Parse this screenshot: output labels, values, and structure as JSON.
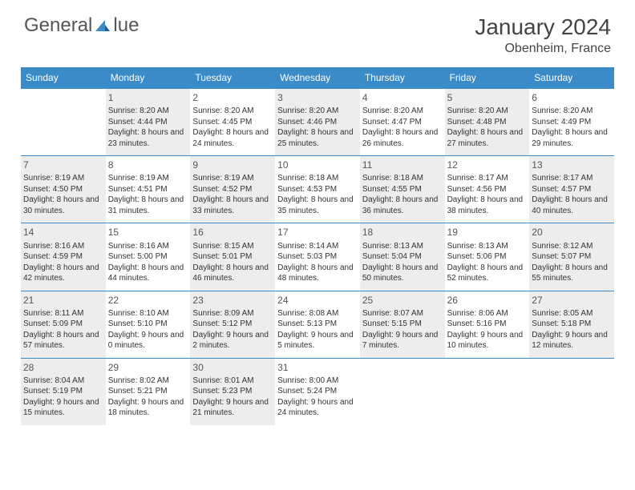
{
  "logo": {
    "text_left": "General",
    "text_right": "lue",
    "accent_color": "#3b8bc9",
    "text_color": "#555555"
  },
  "title": "January 2024",
  "location": "Obenheim, France",
  "colors": {
    "header_bg": "#3b8bc9",
    "header_fg": "#ffffff",
    "gray_bg": "#ededed",
    "text": "#333333"
  },
  "day_headers": [
    "Sunday",
    "Monday",
    "Tuesday",
    "Wednesday",
    "Thursday",
    "Friday",
    "Saturday"
  ],
  "weeks": [
    [
      {
        "num": "",
        "gray": false,
        "sunrise": "",
        "sunset": "",
        "daylight": ""
      },
      {
        "num": "1",
        "gray": true,
        "sunrise": "Sunrise: 8:20 AM",
        "sunset": "Sunset: 4:44 PM",
        "daylight": "Daylight: 8 hours and 23 minutes."
      },
      {
        "num": "2",
        "gray": false,
        "sunrise": "Sunrise: 8:20 AM",
        "sunset": "Sunset: 4:45 PM",
        "daylight": "Daylight: 8 hours and 24 minutes."
      },
      {
        "num": "3",
        "gray": true,
        "sunrise": "Sunrise: 8:20 AM",
        "sunset": "Sunset: 4:46 PM",
        "daylight": "Daylight: 8 hours and 25 minutes."
      },
      {
        "num": "4",
        "gray": false,
        "sunrise": "Sunrise: 8:20 AM",
        "sunset": "Sunset: 4:47 PM",
        "daylight": "Daylight: 8 hours and 26 minutes."
      },
      {
        "num": "5",
        "gray": true,
        "sunrise": "Sunrise: 8:20 AM",
        "sunset": "Sunset: 4:48 PM",
        "daylight": "Daylight: 8 hours and 27 minutes."
      },
      {
        "num": "6",
        "gray": false,
        "sunrise": "Sunrise: 8:20 AM",
        "sunset": "Sunset: 4:49 PM",
        "daylight": "Daylight: 8 hours and 29 minutes."
      }
    ],
    [
      {
        "num": "7",
        "gray": true,
        "sunrise": "Sunrise: 8:19 AM",
        "sunset": "Sunset: 4:50 PM",
        "daylight": "Daylight: 8 hours and 30 minutes."
      },
      {
        "num": "8",
        "gray": false,
        "sunrise": "Sunrise: 8:19 AM",
        "sunset": "Sunset: 4:51 PM",
        "daylight": "Daylight: 8 hours and 31 minutes."
      },
      {
        "num": "9",
        "gray": true,
        "sunrise": "Sunrise: 8:19 AM",
        "sunset": "Sunset: 4:52 PM",
        "daylight": "Daylight: 8 hours and 33 minutes."
      },
      {
        "num": "10",
        "gray": false,
        "sunrise": "Sunrise: 8:18 AM",
        "sunset": "Sunset: 4:53 PM",
        "daylight": "Daylight: 8 hours and 35 minutes."
      },
      {
        "num": "11",
        "gray": true,
        "sunrise": "Sunrise: 8:18 AM",
        "sunset": "Sunset: 4:55 PM",
        "daylight": "Daylight: 8 hours and 36 minutes."
      },
      {
        "num": "12",
        "gray": false,
        "sunrise": "Sunrise: 8:17 AM",
        "sunset": "Sunset: 4:56 PM",
        "daylight": "Daylight: 8 hours and 38 minutes."
      },
      {
        "num": "13",
        "gray": true,
        "sunrise": "Sunrise: 8:17 AM",
        "sunset": "Sunset: 4:57 PM",
        "daylight": "Daylight: 8 hours and 40 minutes."
      }
    ],
    [
      {
        "num": "14",
        "gray": true,
        "sunrise": "Sunrise: 8:16 AM",
        "sunset": "Sunset: 4:59 PM",
        "daylight": "Daylight: 8 hours and 42 minutes."
      },
      {
        "num": "15",
        "gray": false,
        "sunrise": "Sunrise: 8:16 AM",
        "sunset": "Sunset: 5:00 PM",
        "daylight": "Daylight: 8 hours and 44 minutes."
      },
      {
        "num": "16",
        "gray": true,
        "sunrise": "Sunrise: 8:15 AM",
        "sunset": "Sunset: 5:01 PM",
        "daylight": "Daylight: 8 hours and 46 minutes."
      },
      {
        "num": "17",
        "gray": false,
        "sunrise": "Sunrise: 8:14 AM",
        "sunset": "Sunset: 5:03 PM",
        "daylight": "Daylight: 8 hours and 48 minutes."
      },
      {
        "num": "18",
        "gray": true,
        "sunrise": "Sunrise: 8:13 AM",
        "sunset": "Sunset: 5:04 PM",
        "daylight": "Daylight: 8 hours and 50 minutes."
      },
      {
        "num": "19",
        "gray": false,
        "sunrise": "Sunrise: 8:13 AM",
        "sunset": "Sunset: 5:06 PM",
        "daylight": "Daylight: 8 hours and 52 minutes."
      },
      {
        "num": "20",
        "gray": true,
        "sunrise": "Sunrise: 8:12 AM",
        "sunset": "Sunset: 5:07 PM",
        "daylight": "Daylight: 8 hours and 55 minutes."
      }
    ],
    [
      {
        "num": "21",
        "gray": true,
        "sunrise": "Sunrise: 8:11 AM",
        "sunset": "Sunset: 5:09 PM",
        "daylight": "Daylight: 8 hours and 57 minutes."
      },
      {
        "num": "22",
        "gray": false,
        "sunrise": "Sunrise: 8:10 AM",
        "sunset": "Sunset: 5:10 PM",
        "daylight": "Daylight: 9 hours and 0 minutes."
      },
      {
        "num": "23",
        "gray": true,
        "sunrise": "Sunrise: 8:09 AM",
        "sunset": "Sunset: 5:12 PM",
        "daylight": "Daylight: 9 hours and 2 minutes."
      },
      {
        "num": "24",
        "gray": false,
        "sunrise": "Sunrise: 8:08 AM",
        "sunset": "Sunset: 5:13 PM",
        "daylight": "Daylight: 9 hours and 5 minutes."
      },
      {
        "num": "25",
        "gray": true,
        "sunrise": "Sunrise: 8:07 AM",
        "sunset": "Sunset: 5:15 PM",
        "daylight": "Daylight: 9 hours and 7 minutes."
      },
      {
        "num": "26",
        "gray": false,
        "sunrise": "Sunrise: 8:06 AM",
        "sunset": "Sunset: 5:16 PM",
        "daylight": "Daylight: 9 hours and 10 minutes."
      },
      {
        "num": "27",
        "gray": true,
        "sunrise": "Sunrise: 8:05 AM",
        "sunset": "Sunset: 5:18 PM",
        "daylight": "Daylight: 9 hours and 12 minutes."
      }
    ],
    [
      {
        "num": "28",
        "gray": true,
        "sunrise": "Sunrise: 8:04 AM",
        "sunset": "Sunset: 5:19 PM",
        "daylight": "Daylight: 9 hours and 15 minutes."
      },
      {
        "num": "29",
        "gray": false,
        "sunrise": "Sunrise: 8:02 AM",
        "sunset": "Sunset: 5:21 PM",
        "daylight": "Daylight: 9 hours and 18 minutes."
      },
      {
        "num": "30",
        "gray": true,
        "sunrise": "Sunrise: 8:01 AM",
        "sunset": "Sunset: 5:23 PM",
        "daylight": "Daylight: 9 hours and 21 minutes."
      },
      {
        "num": "31",
        "gray": false,
        "sunrise": "Sunrise: 8:00 AM",
        "sunset": "Sunset: 5:24 PM",
        "daylight": "Daylight: 9 hours and 24 minutes."
      },
      {
        "num": "",
        "gray": false,
        "sunrise": "",
        "sunset": "",
        "daylight": ""
      },
      {
        "num": "",
        "gray": false,
        "sunrise": "",
        "sunset": "",
        "daylight": ""
      },
      {
        "num": "",
        "gray": false,
        "sunrise": "",
        "sunset": "",
        "daylight": ""
      }
    ]
  ]
}
